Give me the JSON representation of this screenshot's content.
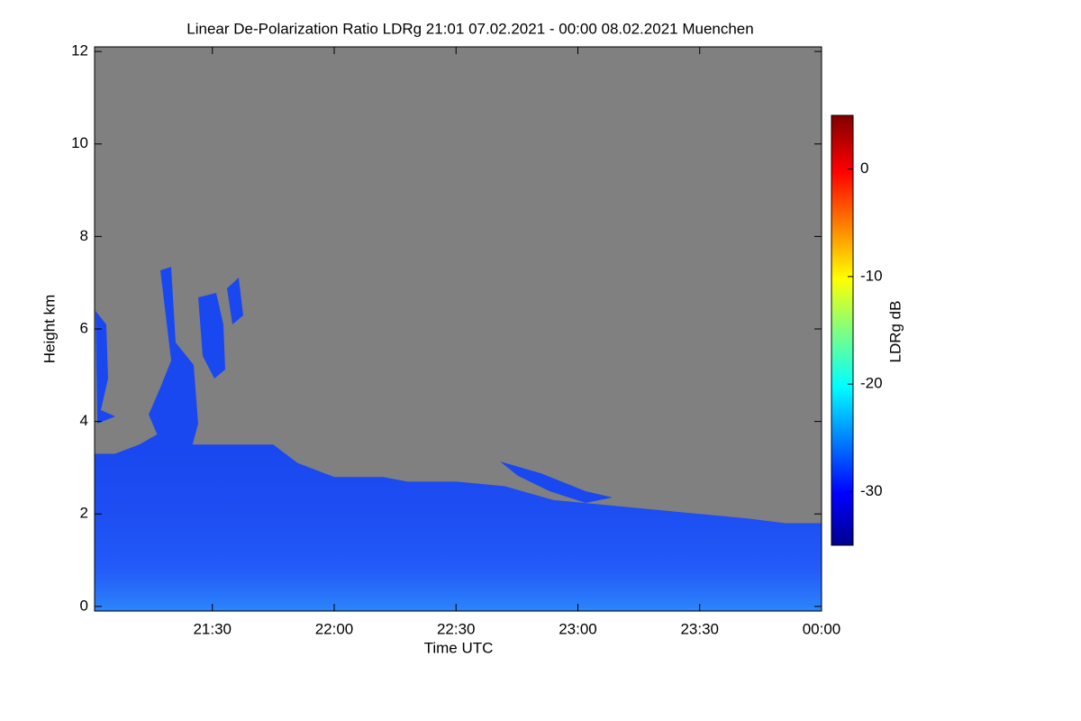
{
  "chart_data": {
    "type": "heatmap",
    "title": "Linear De-Polarization Ratio LDRg   21:01 07.02.2021 - 00:00 08.02.2021 Muenchen",
    "x_label": "Time UTC",
    "y_label": "Height km",
    "colorbar_label": "LDRg dB",
    "xlim": [
      21.0167,
      24
    ],
    "xticks": [
      {
        "value": 21.5,
        "label": "21:30"
      },
      {
        "value": 22,
        "label": "22:00"
      },
      {
        "value": 22.5,
        "label": "22:30"
      },
      {
        "value": 23,
        "label": "23:00"
      },
      {
        "value": 23.5,
        "label": "23:30"
      },
      {
        "value": 24,
        "label": "00:00"
      }
    ],
    "ylim": [
      -0.1,
      12.1
    ],
    "yticks": [
      0,
      2,
      4,
      6,
      8,
      10,
      12
    ],
    "clim": [
      -35,
      5
    ],
    "cticks": [
      0,
      -10,
      -20,
      -30
    ],
    "background_color": "#808080",
    "cloud_color": "#1a48f0",
    "x": [
      21.0167,
      21.1,
      21.2,
      21.3,
      21.4,
      21.5,
      21.6,
      21.75,
      21.85,
      22.0,
      22.2,
      22.3,
      22.5,
      22.7,
      22.9,
      23.1,
      23.3,
      23.5,
      23.7,
      23.85,
      24.0
    ],
    "values": [
      3.3,
      3.3,
      3.5,
      3.8,
      3.5,
      3.5,
      3.5,
      3.5,
      3.1,
      2.8,
      2.8,
      2.7,
      2.7,
      2.6,
      2.3,
      2.2,
      2.1,
      2.0,
      1.9,
      1.8,
      1.8
    ]
  }
}
